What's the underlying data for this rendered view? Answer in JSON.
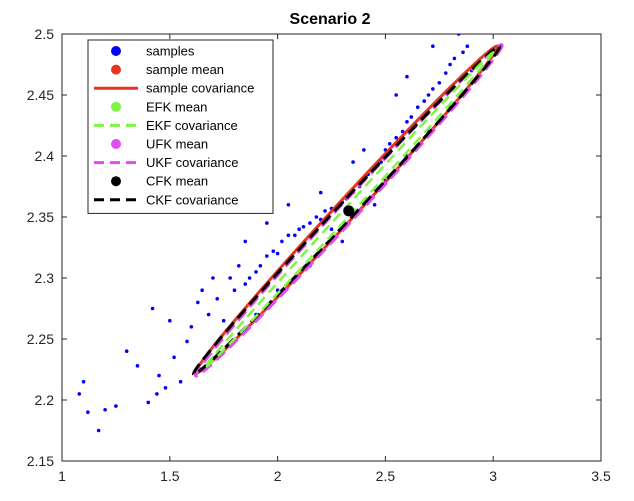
{
  "chart_data": {
    "type": "scatter",
    "title": "Scenario 2",
    "xlabel": "",
    "ylabel": "",
    "xlim": [
      1,
      3.5
    ],
    "ylim": [
      2.15,
      2.5
    ],
    "xticks": [
      "1",
      "1.5",
      "2",
      "2.5",
      "3",
      "3.5"
    ],
    "yticks": [
      "2.15",
      "2.2",
      "2.25",
      "2.3",
      "2.35",
      "2.4",
      "2.45",
      "2.5"
    ],
    "grid": false,
    "legend_position": "top-left",
    "legend": [
      {
        "label": "samples",
        "style": "dot",
        "color": "#0000ff"
      },
      {
        "label": "sample mean",
        "style": "dot",
        "color": "#e8331f"
      },
      {
        "label": "sample covariance",
        "style": "solid",
        "color": "#e8331f"
      },
      {
        "label": "EFK mean",
        "style": "dot",
        "color": "#7ef542"
      },
      {
        "label": "EKF covariance",
        "style": "dashed",
        "color": "#7ef542"
      },
      {
        "label": "UFK mean",
        "style": "dot",
        "color": "#e04cf0"
      },
      {
        "label": "UKF covariance",
        "style": "dashed",
        "color": "#e04cf0"
      },
      {
        "label": "CFK mean",
        "style": "dot",
        "color": "#000000"
      },
      {
        "label": "CKF covariance",
        "style": "dashed",
        "color": "#000000"
      }
    ],
    "series": [
      {
        "name": "samples",
        "kind": "scatter",
        "color": "#0000ff",
        "points": [
          [
            1.08,
            2.205
          ],
          [
            1.1,
            2.215
          ],
          [
            1.12,
            2.19
          ],
          [
            1.17,
            2.175
          ],
          [
            1.2,
            2.192
          ],
          [
            1.25,
            2.195
          ],
          [
            1.3,
            2.24
          ],
          [
            1.35,
            2.228
          ],
          [
            1.4,
            2.198
          ],
          [
            1.42,
            2.275
          ],
          [
            1.45,
            2.22
          ],
          [
            1.44,
            2.205
          ],
          [
            1.48,
            2.21
          ],
          [
            1.5,
            2.265
          ],
          [
            1.52,
            2.235
          ],
          [
            1.55,
            2.215
          ],
          [
            1.58,
            2.248
          ],
          [
            1.6,
            2.26
          ],
          [
            1.63,
            2.28
          ],
          [
            1.65,
            2.29
          ],
          [
            1.68,
            2.27
          ],
          [
            1.7,
            2.3
          ],
          [
            1.72,
            2.283
          ],
          [
            1.75,
            2.265
          ],
          [
            1.78,
            2.3
          ],
          [
            1.8,
            2.29
          ],
          [
            1.82,
            2.31
          ],
          [
            1.85,
            2.295
          ],
          [
            1.87,
            2.3
          ],
          [
            1.9,
            2.305
          ],
          [
            1.92,
            2.31
          ],
          [
            1.95,
            2.318
          ],
          [
            1.98,
            2.322
          ],
          [
            2.0,
            2.32
          ],
          [
            2.02,
            2.33
          ],
          [
            2.05,
            2.335
          ],
          [
            2.08,
            2.335
          ],
          [
            2.1,
            2.34
          ],
          [
            2.12,
            2.342
          ],
          [
            2.15,
            2.345
          ],
          [
            2.18,
            2.35
          ],
          [
            2.2,
            2.348
          ],
          [
            2.22,
            2.355
          ],
          [
            2.25,
            2.357
          ],
          [
            2.28,
            2.36
          ],
          [
            2.3,
            2.362
          ],
          [
            2.32,
            2.365
          ],
          [
            2.35,
            2.37
          ],
          [
            2.38,
            2.375
          ],
          [
            2.4,
            2.38
          ],
          [
            2.42,
            2.385
          ],
          [
            2.45,
            2.39
          ],
          [
            2.48,
            2.395
          ],
          [
            2.5,
            2.405
          ],
          [
            2.52,
            2.41
          ],
          [
            2.55,
            2.415
          ],
          [
            2.58,
            2.42
          ],
          [
            2.6,
            2.428
          ],
          [
            2.62,
            2.432
          ],
          [
            2.65,
            2.44
          ],
          [
            2.68,
            2.445
          ],
          [
            2.7,
            2.45
          ],
          [
            2.72,
            2.455
          ],
          [
            2.75,
            2.46
          ],
          [
            2.78,
            2.468
          ],
          [
            2.8,
            2.475
          ],
          [
            2.82,
            2.48
          ],
          [
            2.84,
            2.5
          ],
          [
            2.86,
            2.485
          ],
          [
            2.88,
            2.49
          ],
          [
            2.9,
            2.47
          ],
          [
            2.72,
            2.49
          ],
          [
            2.6,
            2.465
          ],
          [
            2.55,
            2.45
          ],
          [
            2.4,
            2.405
          ],
          [
            2.35,
            2.395
          ],
          [
            2.2,
            2.37
          ],
          [
            2.05,
            2.36
          ],
          [
            1.95,
            2.345
          ],
          [
            1.85,
            2.33
          ],
          [
            2.45,
            2.36
          ],
          [
            2.3,
            2.33
          ],
          [
            2.15,
            2.31
          ],
          [
            2.0,
            2.29
          ],
          [
            1.9,
            2.27
          ],
          [
            2.6,
            2.4
          ],
          [
            2.7,
            2.42
          ],
          [
            2.8,
            2.44
          ],
          [
            2.5,
            2.38
          ],
          [
            2.25,
            2.34
          ]
        ]
      },
      {
        "name": "sample covariance",
        "kind": "ellipse",
        "color": "#e8331f",
        "center": [
          2.33,
          2.355
        ],
        "endpoints": [
          [
            1.62,
            2.222
          ],
          [
            3.02,
            2.49
          ]
        ],
        "half_width_y": 0.012
      },
      {
        "name": "EKF covariance",
        "kind": "ellipse",
        "color": "#7ef542",
        "center": [
          2.33,
          2.355
        ],
        "endpoints": [
          [
            1.66,
            2.226
          ],
          [
            3.0,
            2.485
          ]
        ],
        "half_width_y": 0.005
      },
      {
        "name": "UKF covariance",
        "kind": "ellipse",
        "color": "#e04cf0",
        "center": [
          2.33,
          2.355
        ],
        "endpoints": [
          [
            1.62,
            2.22
          ],
          [
            3.04,
            2.491
          ]
        ],
        "half_width_y": 0.011
      },
      {
        "name": "CKF covariance",
        "kind": "ellipse",
        "color": "#000000",
        "center": [
          2.33,
          2.355
        ],
        "endpoints": [
          [
            1.61,
            2.221
          ],
          [
            3.03,
            2.49
          ]
        ],
        "half_width_y": 0.01
      },
      {
        "name": "CFK mean",
        "kind": "mean",
        "color": "#000000",
        "point": [
          2.33,
          2.355
        ]
      }
    ]
  }
}
